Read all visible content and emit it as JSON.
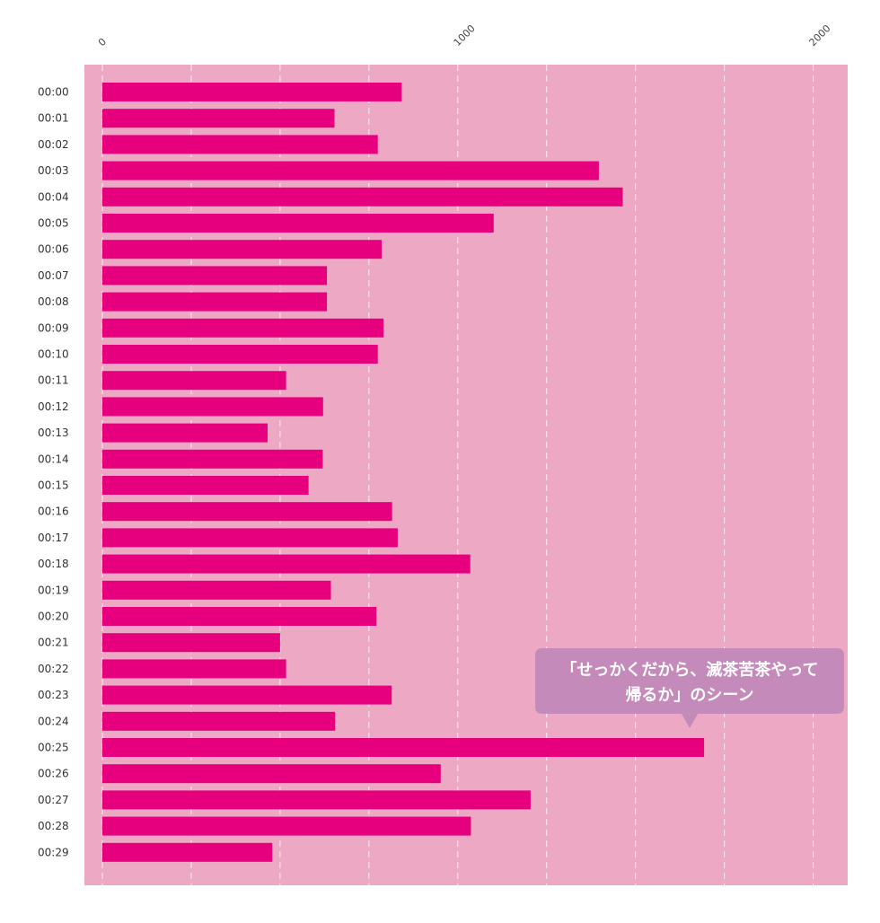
{
  "chart_data": {
    "type": "bar",
    "orientation": "horizontal",
    "categories": [
      "00:00",
      "00:01",
      "00:02",
      "00:03",
      "00:04",
      "00:05",
      "00:06",
      "00:07",
      "00:08",
      "00:09",
      "00:10",
      "00:11",
      "00:12",
      "00:13",
      "00:14",
      "00:15",
      "00:16",
      "00:17",
      "00:18",
      "00:19",
      "00:20",
      "00:21",
      "00:22",
      "00:23",
      "00:24",
      "00:25",
      "00:26",
      "00:27",
      "00:28",
      "00:29"
    ],
    "values": [
      842,
      653,
      775,
      1397,
      1464,
      1101,
      786,
      632,
      632,
      791,
      775,
      517,
      621,
      465,
      620,
      580,
      815,
      831,
      1035,
      643,
      771,
      500,
      517,
      814,
      655,
      1693,
      952,
      1205,
      1037,
      478
    ],
    "x_ticks": [
      "0",
      "1000",
      "2000"
    ],
    "xlim": [
      0,
      2100
    ],
    "grid": "vertical dashed",
    "annotation": {
      "line1": "「せっかくだから、滅茶苦茶やって",
      "line2": "帰るか」のシーン",
      "category": "00:25"
    },
    "colors": {
      "plot_background": "#eda8c4",
      "bar": "#e6007e",
      "grid": "#ffffff",
      "callout": "#c48ab9",
      "callout_text": "#ffffff"
    }
  }
}
